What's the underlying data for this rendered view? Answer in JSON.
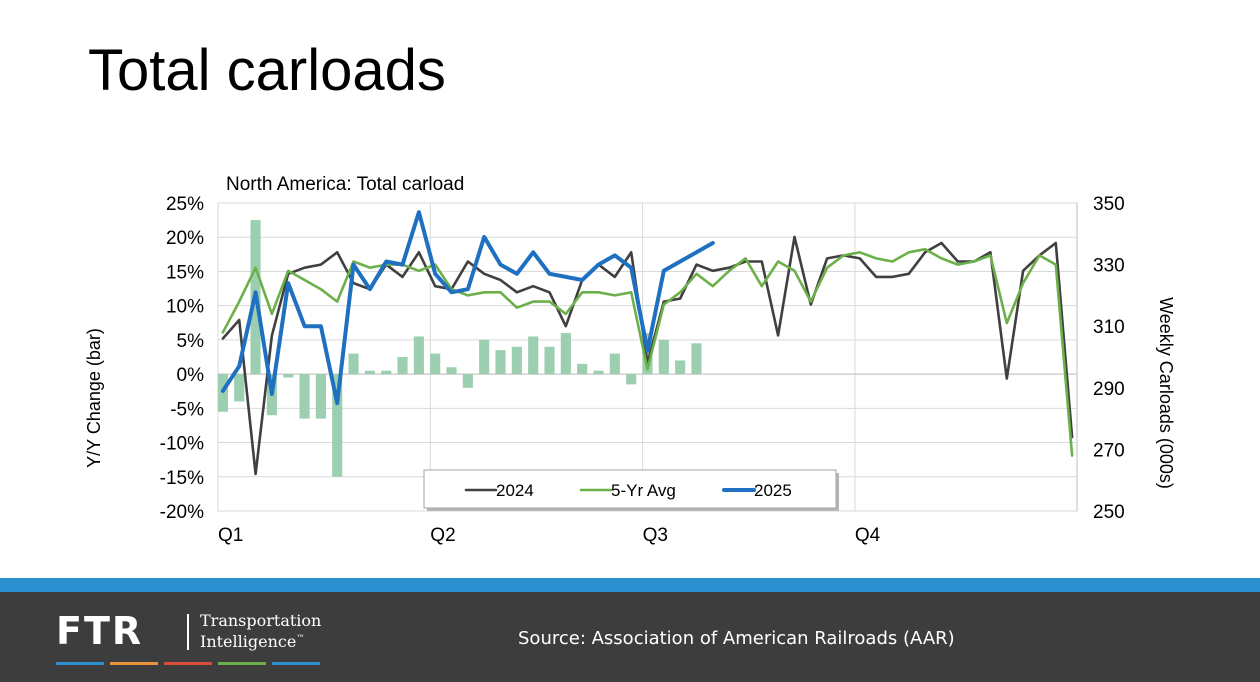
{
  "slide": {
    "title": "Total carloads"
  },
  "footer": {
    "logo": {
      "mark": "FTR",
      "line1": "Transportation",
      "line2": "Intelligence",
      "tm": "™"
    },
    "source": "Source: Association of American Railroads (AAR)",
    "accent_colors": [
      "#2b8fd0",
      "#e8923a",
      "#d94b3b",
      "#6cb04a",
      "#2b8fd0"
    ],
    "stripe_color": "#2b8fd0"
  },
  "chart_data": {
    "type": "bar+line",
    "title": "North America: Total carload",
    "y_left": {
      "label": "Y/Y Change (bar)",
      "min": -20,
      "max": 25,
      "ticks": [
        -20,
        -15,
        -10,
        -5,
        0,
        5,
        10,
        15,
        20,
        25
      ],
      "format": "percent"
    },
    "y_right": {
      "label": "Weekly Carloads (000s)",
      "min": 250,
      "max": 350,
      "ticks": [
        250,
        270,
        290,
        310,
        330,
        350
      ]
    },
    "x": {
      "weeks": 53,
      "quarter_labels": [
        {
          "label": "Q1",
          "week": 0
        },
        {
          "label": "Q2",
          "week": 13
        },
        {
          "label": "Q3",
          "week": 26
        },
        {
          "label": "Q4",
          "week": 39
        }
      ]
    },
    "grid": true,
    "legend": {
      "position": "bottom-center",
      "entries": [
        "2024",
        "5-Yr Avg",
        "2025"
      ]
    },
    "bars": {
      "name": "Y/Y Change",
      "color": "#9ccfb0",
      "values": [
        -5.5,
        -4,
        22.5,
        -6,
        -0.5,
        -6.5,
        -6.5,
        -15,
        3,
        0.5,
        0.5,
        2.5,
        5.5,
        3,
        1,
        -2,
        5,
        3.5,
        4,
        5.5,
        4,
        6,
        1.5,
        0.5,
        3,
        -1.5,
        6,
        5,
        2,
        4.5
      ]
    },
    "series": [
      {
        "name": "2024",
        "color": "#404040",
        "width": 2.6,
        "values": [
          306,
          312,
          262,
          307,
          327,
          329,
          330,
          334,
          324,
          322,
          330,
          326,
          334,
          323,
          322,
          331,
          327,
          325,
          321,
          323,
          321,
          310,
          325,
          330,
          326,
          334,
          298,
          318,
          319,
          330,
          328,
          329,
          331,
          331,
          307,
          339,
          317,
          332,
          333,
          332,
          326,
          326,
          327,
          334,
          337,
          331,
          331,
          334,
          293,
          328,
          333,
          337,
          274
        ]
      },
      {
        "name": "5-Yr Avg",
        "color": "#6cb04a",
        "width": 2.6,
        "values": [
          308,
          318,
          329,
          314,
          328,
          325,
          322,
          318,
          331,
          329,
          330,
          330,
          328,
          330,
          322,
          320,
          321,
          321,
          316,
          318,
          318,
          314,
          321,
          321,
          320,
          321,
          296,
          317,
          321,
          327,
          323,
          328,
          332,
          323,
          331,
          328,
          318,
          329,
          333,
          334,
          332,
          331,
          334,
          335,
          332,
          330,
          331,
          333,
          311,
          324,
          333,
          330,
          268
        ]
      },
      {
        "name": "2025",
        "color": "#1f70c1",
        "width": 4,
        "values": [
          289,
          297,
          321,
          288,
          324,
          310,
          310,
          285,
          330,
          322,
          331,
          330,
          347,
          327,
          321,
          322,
          339,
          330,
          327,
          334,
          327,
          326,
          325,
          330,
          333,
          329,
          302,
          328,
          331,
          334,
          337
        ]
      }
    ]
  }
}
